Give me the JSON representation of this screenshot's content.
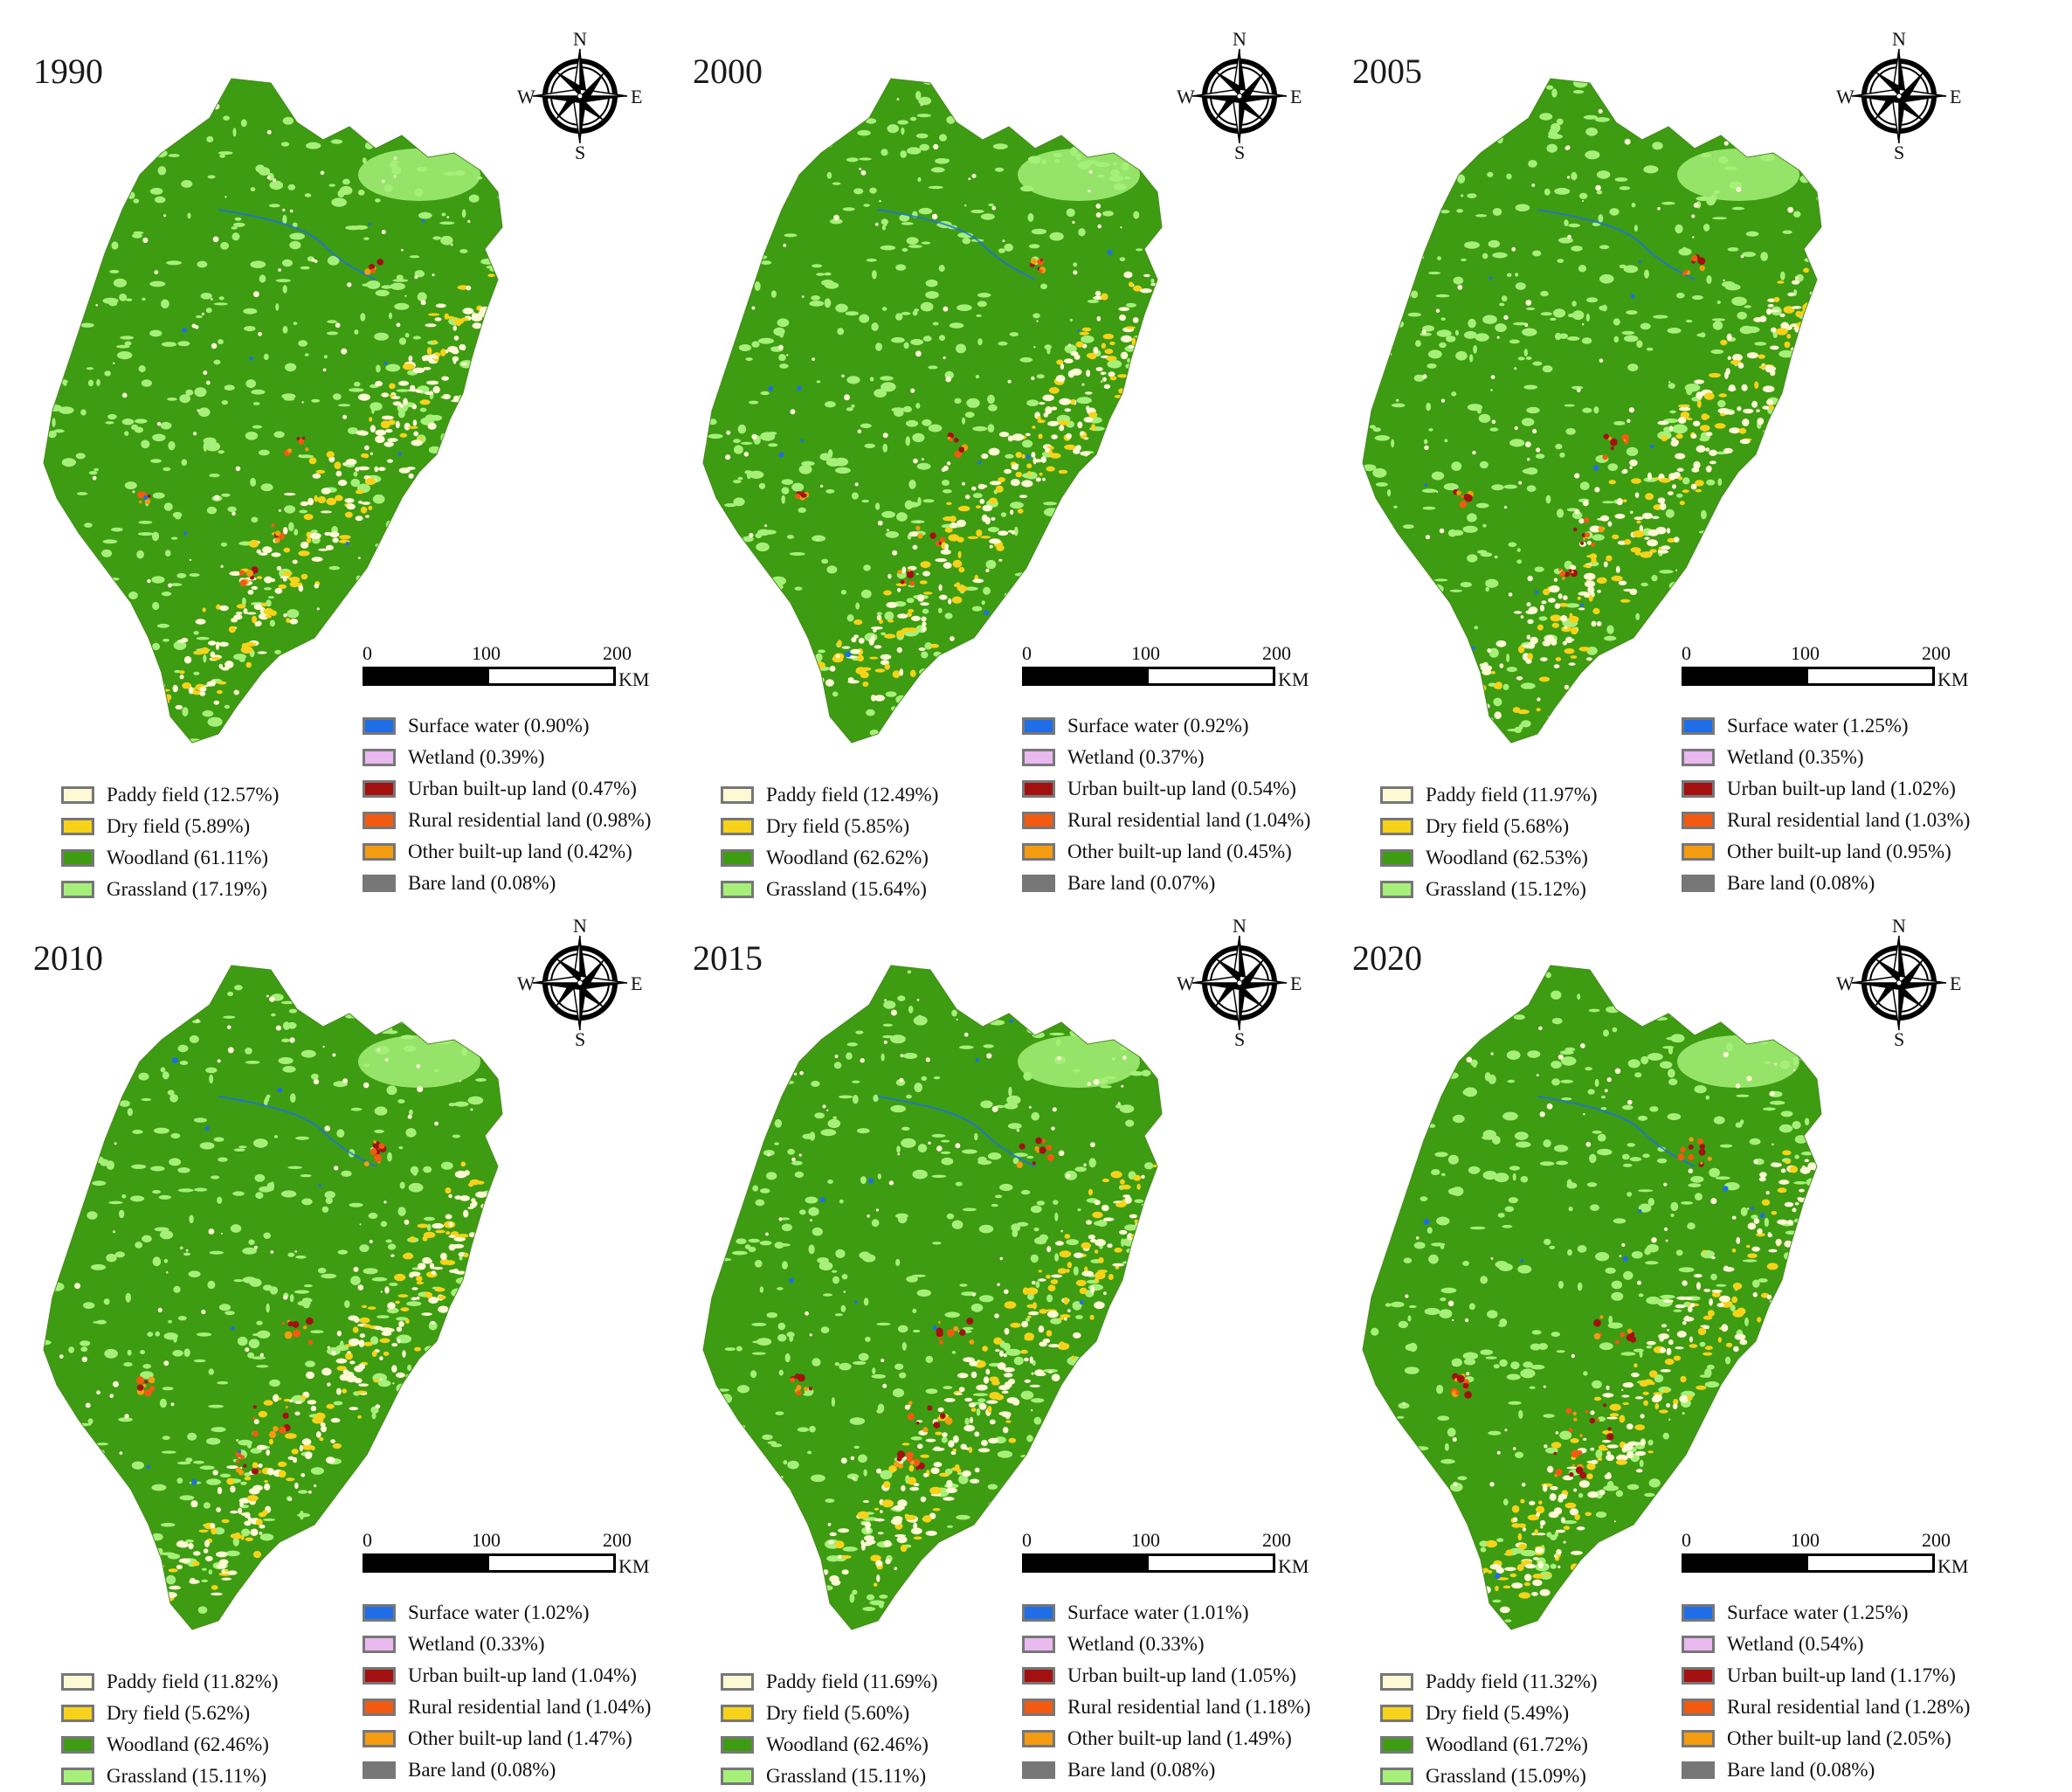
{
  "compass_labels": {
    "n": "N",
    "s": "S",
    "w": "W",
    "e": "E"
  },
  "scale_bar": {
    "ticks": [
      "0",
      "100",
      "200"
    ],
    "unit": "KM"
  },
  "legend_colors": {
    "paddy_field": "#fdf9d5",
    "dry_field": "#f7d21a",
    "woodland": "#3d9c12",
    "grassland": "#a6f07a",
    "surface_water": "#1f6ee8",
    "wetland": "#e9b9ef",
    "urban": "#a31010",
    "rural": "#f25a12",
    "other_builtup": "#f49c12",
    "bare_land": "#777777"
  },
  "panels": [
    {
      "year": "1990",
      "legend_left": [
        {
          "key": "paddy_field",
          "label": "Paddy field (12.57%)"
        },
        {
          "key": "dry_field",
          "label": "Dry field (5.89%)"
        },
        {
          "key": "woodland",
          "label": "Woodland (61.11%)"
        },
        {
          "key": "grassland",
          "label": "Grassland (17.19%)"
        }
      ],
      "legend_right": [
        {
          "key": "surface_water",
          "label": "Surface water (0.90%)"
        },
        {
          "key": "wetland",
          "label": "Wetland (0.39%)"
        },
        {
          "key": "urban",
          "label": "Urban built-up land (0.47%)"
        },
        {
          "key": "rural",
          "label": "Rural residential land (0.98%)"
        },
        {
          "key": "other_builtup",
          "label": "Other built-up land (0.42%)"
        },
        {
          "key": "bare_land",
          "label": "Bare land (0.08%)"
        }
      ]
    },
    {
      "year": "2000",
      "legend_left": [
        {
          "key": "paddy_field",
          "label": "Paddy field (12.49%)"
        },
        {
          "key": "dry_field",
          "label": "Dry field (5.85%)"
        },
        {
          "key": "woodland",
          "label": "Woodland (62.62%)"
        },
        {
          "key": "grassland",
          "label": "Grassland (15.64%)"
        }
      ],
      "legend_right": [
        {
          "key": "surface_water",
          "label": "Surface water (0.92%)"
        },
        {
          "key": "wetland",
          "label": "Wetland (0.37%)"
        },
        {
          "key": "urban",
          "label": "Urban built-up land (0.54%)"
        },
        {
          "key": "rural",
          "label": "Rural residential land (1.04%)"
        },
        {
          "key": "other_builtup",
          "label": "Other built-up land (0.45%)"
        },
        {
          "key": "bare_land",
          "label": "Bare land (0.07%)"
        }
      ]
    },
    {
      "year": "2005",
      "legend_left": [
        {
          "key": "paddy_field",
          "label": "Paddy field (11.97%)"
        },
        {
          "key": "dry_field",
          "label": "Dry field (5.68%)"
        },
        {
          "key": "woodland",
          "label": "Woodland (62.53%)"
        },
        {
          "key": "grassland",
          "label": "Grassland (15.12%)"
        }
      ],
      "legend_right": [
        {
          "key": "surface_water",
          "label": "Surface water (1.25%)"
        },
        {
          "key": "wetland",
          "label": "Wetland (0.35%)"
        },
        {
          "key": "urban",
          "label": "Urban built-up land (1.02%)"
        },
        {
          "key": "rural",
          "label": "Rural residential land (1.03%)"
        },
        {
          "key": "other_builtup",
          "label": "Other built-up land (0.95%)"
        },
        {
          "key": "bare_land",
          "label": "Bare land (0.08%)"
        }
      ]
    },
    {
      "year": "2010",
      "legend_left": [
        {
          "key": "paddy_field",
          "label": "Paddy field (11.82%)"
        },
        {
          "key": "dry_field",
          "label": "Dry field (5.62%)"
        },
        {
          "key": "woodland",
          "label": "Woodland (62.46%)"
        },
        {
          "key": "grassland",
          "label": "Grassland (15.11%)"
        }
      ],
      "legend_right": [
        {
          "key": "surface_water",
          "label": "Surface water (1.02%)"
        },
        {
          "key": "wetland",
          "label": "Wetland (0.33%)"
        },
        {
          "key": "urban",
          "label": "Urban built-up land (1.04%)"
        },
        {
          "key": "rural",
          "label": "Rural residential land (1.04%)"
        },
        {
          "key": "other_builtup",
          "label": "Other built-up land (1.47%)"
        },
        {
          "key": "bare_land",
          "label": "Bare land (0.08%)"
        }
      ]
    },
    {
      "year": "2015",
      "legend_left": [
        {
          "key": "paddy_field",
          "label": "Paddy field (11.69%)"
        },
        {
          "key": "dry_field",
          "label": "Dry field (5.60%)"
        },
        {
          "key": "woodland",
          "label": "Woodland (62.46%)"
        },
        {
          "key": "grassland",
          "label": "Grassland (15.11%)"
        }
      ],
      "legend_right": [
        {
          "key": "surface_water",
          "label": "Surface water (1.01%)"
        },
        {
          "key": "wetland",
          "label": "Wetland (0.33%)"
        },
        {
          "key": "urban",
          "label": "Urban built-up land (1.05%)"
        },
        {
          "key": "rural",
          "label": "Rural residential land (1.18%)"
        },
        {
          "key": "other_builtup",
          "label": "Other built-up land (1.49%)"
        },
        {
          "key": "bare_land",
          "label": "Bare land (0.08%)"
        }
      ]
    },
    {
      "year": "2020",
      "legend_left": [
        {
          "key": "paddy_field",
          "label": "Paddy field (11.32%)"
        },
        {
          "key": "dry_field",
          "label": "Dry field (5.49%)"
        },
        {
          "key": "woodland",
          "label": "Woodland (61.72%)"
        },
        {
          "key": "grassland",
          "label": "Grassland (15.09%)"
        }
      ],
      "legend_right": [
        {
          "key": "surface_water",
          "label": "Surface water (1.25%)"
        },
        {
          "key": "wetland",
          "label": "Wetland (0.54%)"
        },
        {
          "key": "urban",
          "label": "Urban built-up land (1.17%)"
        },
        {
          "key": "rural",
          "label": "Rural residential land (1.28%)"
        },
        {
          "key": "other_builtup",
          "label": "Other built-up land (2.05%)"
        },
        {
          "key": "bare_land",
          "label": "Bare land (0.08%)"
        }
      ]
    }
  ]
}
